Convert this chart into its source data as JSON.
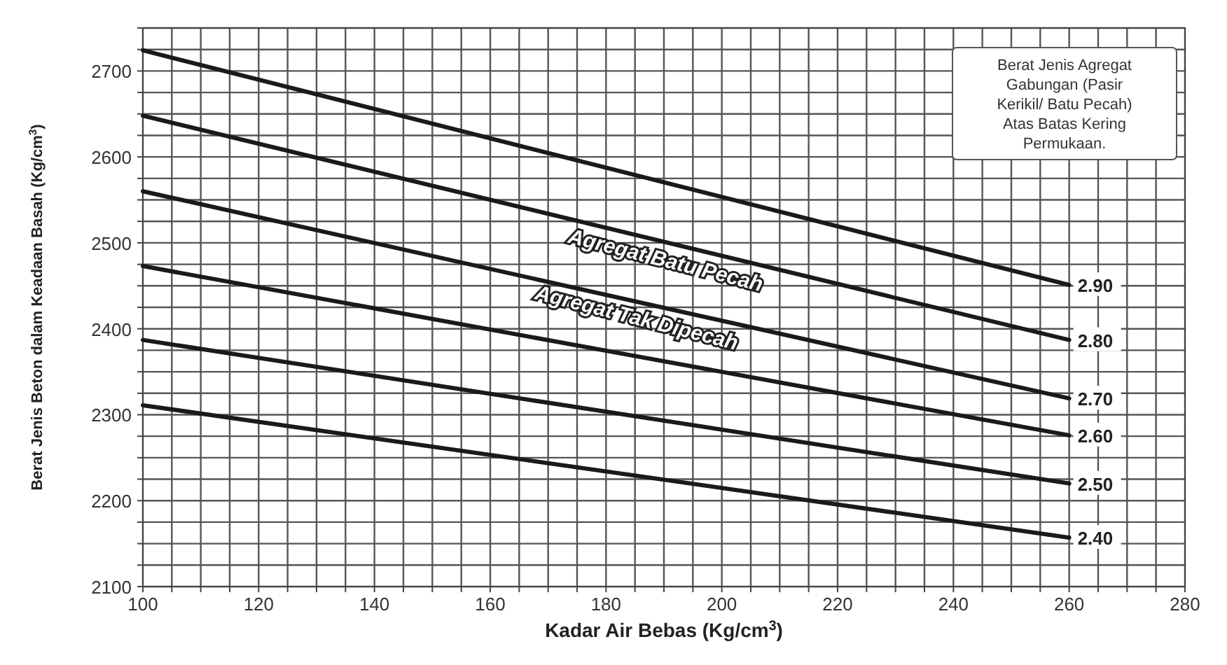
{
  "chart_data": {
    "type": "line",
    "xlabel": "Kadar Air Bebas (Kg/cm$^{3}$)",
    "ylabel": "Berat Jenis Beton dalam Keadaan Basah (Kg/cm$^{3}$)",
    "x": [
      100,
      260
    ],
    "series": [
      {
        "name": "2.90",
        "color": "#1a1a1a",
        "values": [
          2724,
          2451
        ]
      },
      {
        "name": "2.80",
        "color": "#1a1a1a",
        "values": [
          2648,
          2387
        ]
      },
      {
        "name": "2.70",
        "color": "#1a1a1a",
        "values": [
          2560,
          2319
        ]
      },
      {
        "name": "2.60",
        "color": "#1a1a1a",
        "values": [
          2473,
          2276
        ]
      },
      {
        "name": "2.50",
        "color": "#1a1a1a",
        "values": [
          2387,
          2220
        ]
      },
      {
        "name": "2.40",
        "color": "#1a1a1a",
        "values": [
          2311,
          2157
        ]
      }
    ],
    "xlim": [
      100,
      280
    ],
    "xticks": [
      100,
      {
        "value": 105,
        "label": null
      },
      {
        "value": 110,
        "label": null
      },
      {
        "value": 115,
        "label": null
      },
      120,
      {
        "value": 125,
        "label": null
      },
      {
        "value": 130,
        "label": null
      },
      {
        "value": 135,
        "label": null
      },
      140,
      {
        "value": 145,
        "label": null
      },
      {
        "value": 150,
        "label": null
      },
      {
        "value": 155,
        "label": null
      },
      160,
      {
        "value": 165,
        "label": null
      },
      {
        "value": 170,
        "label": null
      },
      {
        "value": 175,
        "label": null
      },
      180,
      {
        "value": 185,
        "label": null
      },
      {
        "value": 190,
        "label": null
      },
      {
        "value": 195,
        "label": null
      },
      200,
      {
        "value": 205,
        "label": null
      },
      {
        "value": 210,
        "label": null
      },
      {
        "value": 215,
        "label": null
      },
      220,
      {
        "value": 225,
        "label": null
      },
      {
        "value": 230,
        "label": null
      },
      {
        "value": 235,
        "label": null
      },
      240,
      {
        "value": 245,
        "label": null
      },
      {
        "value": 250,
        "label": null
      },
      {
        "value": 255,
        "label": null
      },
      260,
      {
        "value": 265,
        "label": null
      },
      {
        "value": 270,
        "label": null
      },
      {
        "value": 275,
        "label": null
      },
      280
    ],
    "ylim": [
      2100,
      2750
    ],
    "yticks": [
      2100,
      {
        "value": 2125,
        "label": null
      },
      {
        "value": 2150,
        "label": null
      },
      {
        "value": 2175,
        "label": null
      },
      2200,
      {
        "value": 2225,
        "label": null
      },
      {
        "value": 2250,
        "label": null
      },
      {
        "value": 2275,
        "label": null
      },
      2300,
      {
        "value": 2325,
        "label": null
      },
      {
        "value": 2350,
        "label": null
      },
      {
        "value": 2375,
        "label": null
      },
      2400,
      {
        "value": 2425,
        "label": null
      },
      {
        "value": 2450,
        "label": null
      },
      {
        "value": 2475,
        "label": null
      },
      2500,
      {
        "value": 2525,
        "label": null
      },
      {
        "value": 2550,
        "label": null
      },
      {
        "value": 2575,
        "label": null
      },
      2600,
      {
        "value": 2625,
        "label": null
      },
      {
        "value": 2650,
        "label": null
      },
      {
        "value": 2675,
        "label": null
      },
      2700,
      {
        "value": 2725,
        "label": null
      },
      {
        "value": 2750,
        "label": null
      }
    ],
    "grid": true,
    "marker": "none",
    "line_style": "solid",
    "annotations": [
      "Berat Jenis Agregat Gabungan (Pasir Kerikil/ Batu Pecah) Atas Batas Kering Permukaan.",
      "Agregat Batu Pecah",
      "Agregat Tak Dipecah"
    ]
  }
}
